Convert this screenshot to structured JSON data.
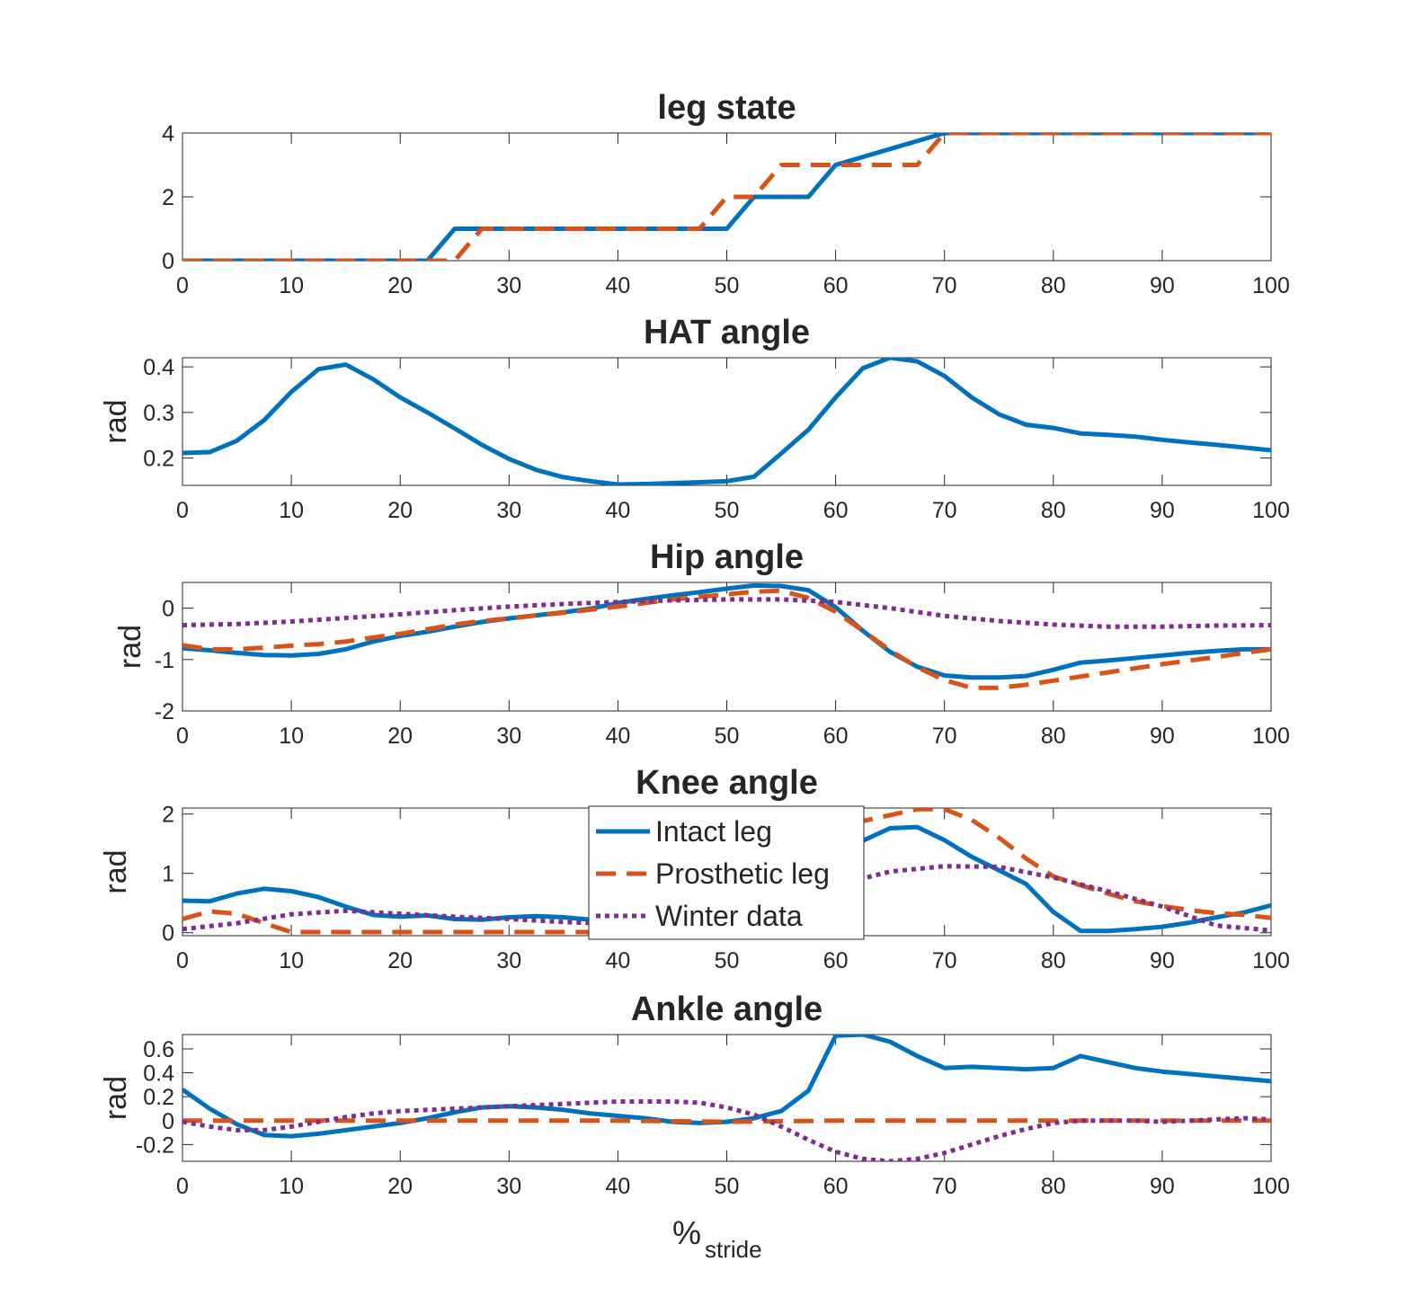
{
  "colors": {
    "intact": "#0072BD",
    "prosthetic": "#D95319",
    "winter": "#7E2F8E",
    "axis": "#262626"
  },
  "figure": {
    "xlabel_main": "%",
    "xlabel_sub": "stride"
  },
  "legend": {
    "placement": "inside Knee angle panel, center",
    "entries": [
      "Intact leg",
      "Prosthetic leg",
      "Winter data"
    ]
  },
  "chart_data": [
    {
      "type": "line",
      "title": "leg state",
      "ylabel": "",
      "xlim": [
        0,
        100
      ],
      "ylim": [
        0,
        4
      ],
      "xticks": [
        0,
        10,
        20,
        30,
        40,
        50,
        60,
        70,
        80,
        90,
        100
      ],
      "yticks": [
        0,
        2,
        4
      ],
      "ytick_labels": [
        "0",
        "2",
        "4"
      ],
      "series": [
        {
          "key": "intact",
          "style": "solid",
          "x": [
            0,
            22.5,
            25,
            50,
            52.5,
            57.5,
            60,
            70,
            100
          ],
          "y": [
            0,
            0,
            1,
            1,
            2,
            2,
            3,
            4,
            4
          ]
        },
        {
          "key": "prosthetic",
          "style": "dashed",
          "x": [
            0,
            25,
            27.5,
            47.5,
            50,
            52.5,
            55,
            67.5,
            70,
            100
          ],
          "y": [
            0,
            0,
            1,
            1,
            2,
            2,
            3,
            3,
            4,
            4
          ]
        }
      ]
    },
    {
      "type": "line",
      "title": "HAT angle",
      "ylabel": "rad",
      "xlim": [
        0,
        100
      ],
      "ylim": [
        0.14,
        0.42
      ],
      "xticks": [
        0,
        10,
        20,
        30,
        40,
        50,
        60,
        70,
        80,
        90,
        100
      ],
      "yticks": [
        0.2,
        0.3,
        0.4
      ],
      "ytick_labels": [
        "0.2",
        "0.3",
        "0.4"
      ],
      "series": [
        {
          "key": "intact",
          "style": "solid",
          "x": [
            0,
            2.5,
            5,
            7.5,
            10,
            12.5,
            15,
            17.5,
            20,
            22.5,
            25,
            27.5,
            30,
            32.5,
            35,
            37.5,
            40,
            42.5,
            45,
            47.5,
            50,
            52.5,
            55,
            57.5,
            60,
            62.5,
            65,
            67.5,
            70,
            72.5,
            75,
            77.5,
            80,
            82.5,
            85,
            87.5,
            90,
            92.5,
            95,
            97.5,
            100
          ],
          "y": [
            0.211,
            0.213,
            0.238,
            0.283,
            0.345,
            0.395,
            0.405,
            0.373,
            0.333,
            0.3,
            0.265,
            0.229,
            0.198,
            0.174,
            0.158,
            0.149,
            0.142,
            0.143,
            0.145,
            0.147,
            0.149,
            0.159,
            0.21,
            0.262,
            0.333,
            0.397,
            0.42,
            0.412,
            0.38,
            0.333,
            0.296,
            0.273,
            0.266,
            0.254,
            0.251,
            0.247,
            0.24,
            0.234,
            0.229,
            0.223,
            0.217
          ]
        }
      ]
    },
    {
      "type": "line",
      "title": "Hip angle",
      "ylabel": "rad",
      "xlim": [
        0,
        100
      ],
      "ylim": [
        -2,
        0.5
      ],
      "xticks": [
        0,
        10,
        20,
        30,
        40,
        50,
        60,
        70,
        80,
        90,
        100
      ],
      "yticks": [
        -2,
        -1,
        0
      ],
      "ytick_labels": [
        "-2",
        "-1",
        "0"
      ],
      "series": [
        {
          "key": "intact",
          "style": "solid",
          "x": [
            0,
            2.5,
            5,
            7.5,
            10,
            12.5,
            15,
            17.5,
            20,
            22.5,
            25,
            27.5,
            30,
            32.5,
            35,
            37.5,
            40,
            42.5,
            45,
            47.5,
            50,
            52.5,
            55,
            57.5,
            60,
            62.5,
            65,
            67.5,
            70,
            72.5,
            75,
            77.5,
            80,
            82.5,
            85,
            87.5,
            90,
            92.5,
            95,
            97.5,
            100
          ],
          "y": [
            -0.78,
            -0.82,
            -0.87,
            -0.91,
            -0.92,
            -0.89,
            -0.8,
            -0.65,
            -0.54,
            -0.46,
            -0.36,
            -0.27,
            -0.2,
            -0.14,
            -0.08,
            -0.01,
            0.1,
            0.18,
            0.25,
            0.31,
            0.38,
            0.44,
            0.43,
            0.35,
            0.02,
            -0.44,
            -0.85,
            -1.14,
            -1.31,
            -1.35,
            -1.35,
            -1.32,
            -1.2,
            -1.06,
            -1.02,
            -0.97,
            -0.92,
            -0.87,
            -0.83,
            -0.8,
            -0.8
          ]
        },
        {
          "key": "prosthetic",
          "style": "dashed",
          "x": [
            0,
            2.5,
            5,
            7.5,
            10,
            12.5,
            15,
            17.5,
            20,
            22.5,
            25,
            27.5,
            30,
            32.5,
            35,
            37.5,
            40,
            42.5,
            45,
            47.5,
            50,
            52.5,
            55,
            57.5,
            60,
            62.5,
            65,
            67.5,
            70,
            72.5,
            75,
            77.5,
            80,
            82.5,
            85,
            87.5,
            90,
            92.5,
            95,
            97.5,
            100
          ],
          "y": [
            -0.72,
            -0.8,
            -0.8,
            -0.77,
            -0.73,
            -0.7,
            -0.65,
            -0.57,
            -0.5,
            -0.41,
            -0.32,
            -0.25,
            -0.2,
            -0.14,
            -0.09,
            -0.03,
            0.03,
            0.1,
            0.17,
            0.22,
            0.27,
            0.32,
            0.34,
            0.2,
            -0.07,
            -0.44,
            -0.82,
            -1.15,
            -1.4,
            -1.55,
            -1.55,
            -1.49,
            -1.41,
            -1.33,
            -1.25,
            -1.17,
            -1.09,
            -1.02,
            -0.95,
            -0.87,
            -0.8
          ]
        },
        {
          "key": "winter",
          "style": "dotted",
          "x": [
            0,
            5,
            10,
            15,
            20,
            25,
            30,
            35,
            40,
            45,
            50,
            55,
            60,
            65,
            70,
            75,
            80,
            85,
            90,
            95,
            100
          ],
          "y": [
            -0.33,
            -0.31,
            -0.26,
            -0.19,
            -0.12,
            -0.04,
            0.03,
            0.08,
            0.12,
            0.15,
            0.17,
            0.17,
            0.12,
            0.0,
            -0.15,
            -0.25,
            -0.32,
            -0.36,
            -0.36,
            -0.34,
            -0.33
          ]
        }
      ]
    },
    {
      "type": "line",
      "title": "Knee angle",
      "ylabel": "rad",
      "xlim": [
        0,
        100
      ],
      "ylim": [
        -0.05,
        2.1
      ],
      "xticks": [
        0,
        10,
        20,
        30,
        40,
        50,
        60,
        70,
        80,
        90,
        100
      ],
      "yticks": [
        0,
        1,
        2
      ],
      "ytick_labels": [
        "0",
        "1",
        "2"
      ],
      "series": [
        {
          "key": "intact",
          "style": "solid",
          "x": [
            0,
            2.5,
            5,
            7.5,
            10,
            12.5,
            15,
            17.5,
            20,
            22.5,
            25,
            27.5,
            30,
            32.5,
            35,
            37.5,
            40,
            42.5,
            45,
            47.5,
            50,
            52.5,
            55,
            57.5,
            60,
            62.5,
            65,
            67.5,
            70,
            72.5,
            75,
            77.5,
            80,
            82.5,
            85,
            87.5,
            90,
            92.5,
            95,
            97.5,
            100
          ],
          "y": [
            0.54,
            0.53,
            0.66,
            0.74,
            0.7,
            0.6,
            0.44,
            0.3,
            0.27,
            0.29,
            0.23,
            0.22,
            0.26,
            0.28,
            0.26,
            0.22,
            0.2,
            0.2,
            0.22,
            0.24,
            0.28,
            0.42,
            0.7,
            1.05,
            1.3,
            1.55,
            1.76,
            1.78,
            1.56,
            1.28,
            1.05,
            0.82,
            0.35,
            0.03,
            0.03,
            0.06,
            0.1,
            0.17,
            0.26,
            0.34,
            0.46
          ]
        },
        {
          "key": "prosthetic",
          "style": "dashed",
          "x": [
            0,
            2.5,
            5,
            7.5,
            10,
            12.5,
            15,
            17.5,
            20,
            22.5,
            25,
            27.5,
            30,
            32.5,
            35,
            37.5,
            40,
            42.5,
            45,
            47.5,
            50,
            52.5,
            55,
            57.5,
            60,
            62.5,
            65,
            67.5,
            70,
            72.5,
            75,
            77.5,
            80,
            82.5,
            85,
            87.5,
            90,
            92.5,
            95,
            97.5,
            100
          ],
          "y": [
            0.23,
            0.36,
            0.32,
            0.16,
            0.01,
            0.01,
            0.01,
            0.01,
            0.01,
            0.01,
            0.01,
            0.01,
            0.01,
            0.01,
            0.01,
            0.01,
            0.02,
            0.06,
            0.15,
            0.3,
            0.52,
            0.82,
            1.15,
            1.48,
            1.72,
            1.88,
            1.98,
            2.08,
            2.08,
            1.9,
            1.6,
            1.25,
            0.95,
            0.8,
            0.66,
            0.53,
            0.45,
            0.38,
            0.33,
            0.3,
            0.25
          ]
        },
        {
          "key": "winter",
          "style": "dotted",
          "x": [
            0,
            5,
            10,
            15,
            20,
            25,
            30,
            35,
            40,
            45,
            50,
            55,
            60,
            65,
            70,
            75,
            80,
            85,
            90,
            95,
            100
          ],
          "y": [
            0.06,
            0.16,
            0.31,
            0.37,
            0.32,
            0.27,
            0.23,
            0.18,
            0.15,
            0.17,
            0.27,
            0.5,
            0.8,
            1.03,
            1.12,
            1.11,
            0.93,
            0.7,
            0.44,
            0.12,
            0.04
          ]
        }
      ]
    },
    {
      "type": "line",
      "title": "Ankle angle",
      "ylabel": "rad",
      "xlim": [
        0,
        100
      ],
      "ylim": [
        -0.34,
        0.72
      ],
      "xticks": [
        0,
        10,
        20,
        30,
        40,
        50,
        60,
        70,
        80,
        90,
        100
      ],
      "yticks": [
        -0.2,
        0,
        0.2,
        0.4,
        0.6
      ],
      "ytick_labels": [
        "-0.2",
        "0",
        "0.2",
        "0.4",
        "0.6"
      ],
      "series": [
        {
          "key": "intact",
          "style": "solid",
          "x": [
            0,
            2.5,
            5,
            7.5,
            10,
            12.5,
            15,
            17.5,
            20,
            22.5,
            25,
            27.5,
            30,
            32.5,
            35,
            37.5,
            40,
            42.5,
            45,
            47.5,
            50,
            52.5,
            55,
            57.5,
            60,
            62.5,
            65,
            67.5,
            70,
            72.5,
            75,
            77.5,
            80,
            82.5,
            85,
            87.5,
            90,
            92.5,
            95,
            97.5,
            100
          ],
          "y": [
            0.26,
            0.1,
            -0.03,
            -0.12,
            -0.13,
            -0.11,
            -0.08,
            -0.05,
            -0.02,
            0.02,
            0.07,
            0.11,
            0.12,
            0.11,
            0.09,
            0.06,
            0.04,
            0.02,
            -0.01,
            -0.02,
            -0.01,
            0.02,
            0.08,
            0.25,
            0.71,
            0.72,
            0.66,
            0.54,
            0.44,
            0.45,
            0.44,
            0.43,
            0.44,
            0.54,
            0.49,
            0.44,
            0.41,
            0.39,
            0.37,
            0.35,
            0.33
          ]
        },
        {
          "key": "prosthetic",
          "style": "dashed",
          "x": [
            0,
            10,
            20,
            30,
            40,
            50,
            60,
            70,
            80,
            90,
            100
          ],
          "y": [
            0.0,
            0.0,
            0.0,
            0.0,
            0.0,
            -0.01,
            0.0,
            0.0,
            0.0,
            0.0,
            0.0
          ]
        },
        {
          "key": "winter",
          "style": "dotted",
          "x": [
            0,
            2.5,
            5,
            7.5,
            10,
            12.5,
            15,
            17.5,
            20,
            22.5,
            25,
            27.5,
            30,
            32.5,
            35,
            37.5,
            40,
            42.5,
            45,
            47.5,
            50,
            52.5,
            55,
            57.5,
            60,
            62.5,
            65,
            67.5,
            70,
            72.5,
            75,
            77.5,
            80,
            82.5,
            85,
            87.5,
            90,
            92.5,
            95,
            97.5,
            100
          ],
          "y": [
            -0.01,
            -0.05,
            -0.08,
            -0.08,
            -0.05,
            -0.01,
            0.03,
            0.06,
            0.08,
            0.09,
            0.1,
            0.11,
            0.12,
            0.13,
            0.14,
            0.15,
            0.16,
            0.16,
            0.16,
            0.15,
            0.11,
            0.05,
            -0.05,
            -0.16,
            -0.26,
            -0.32,
            -0.34,
            -0.32,
            -0.27,
            -0.2,
            -0.13,
            -0.07,
            -0.02,
            0.0,
            0.0,
            0.0,
            -0.01,
            0.0,
            0.01,
            0.02,
            0.01
          ]
        }
      ]
    }
  ]
}
